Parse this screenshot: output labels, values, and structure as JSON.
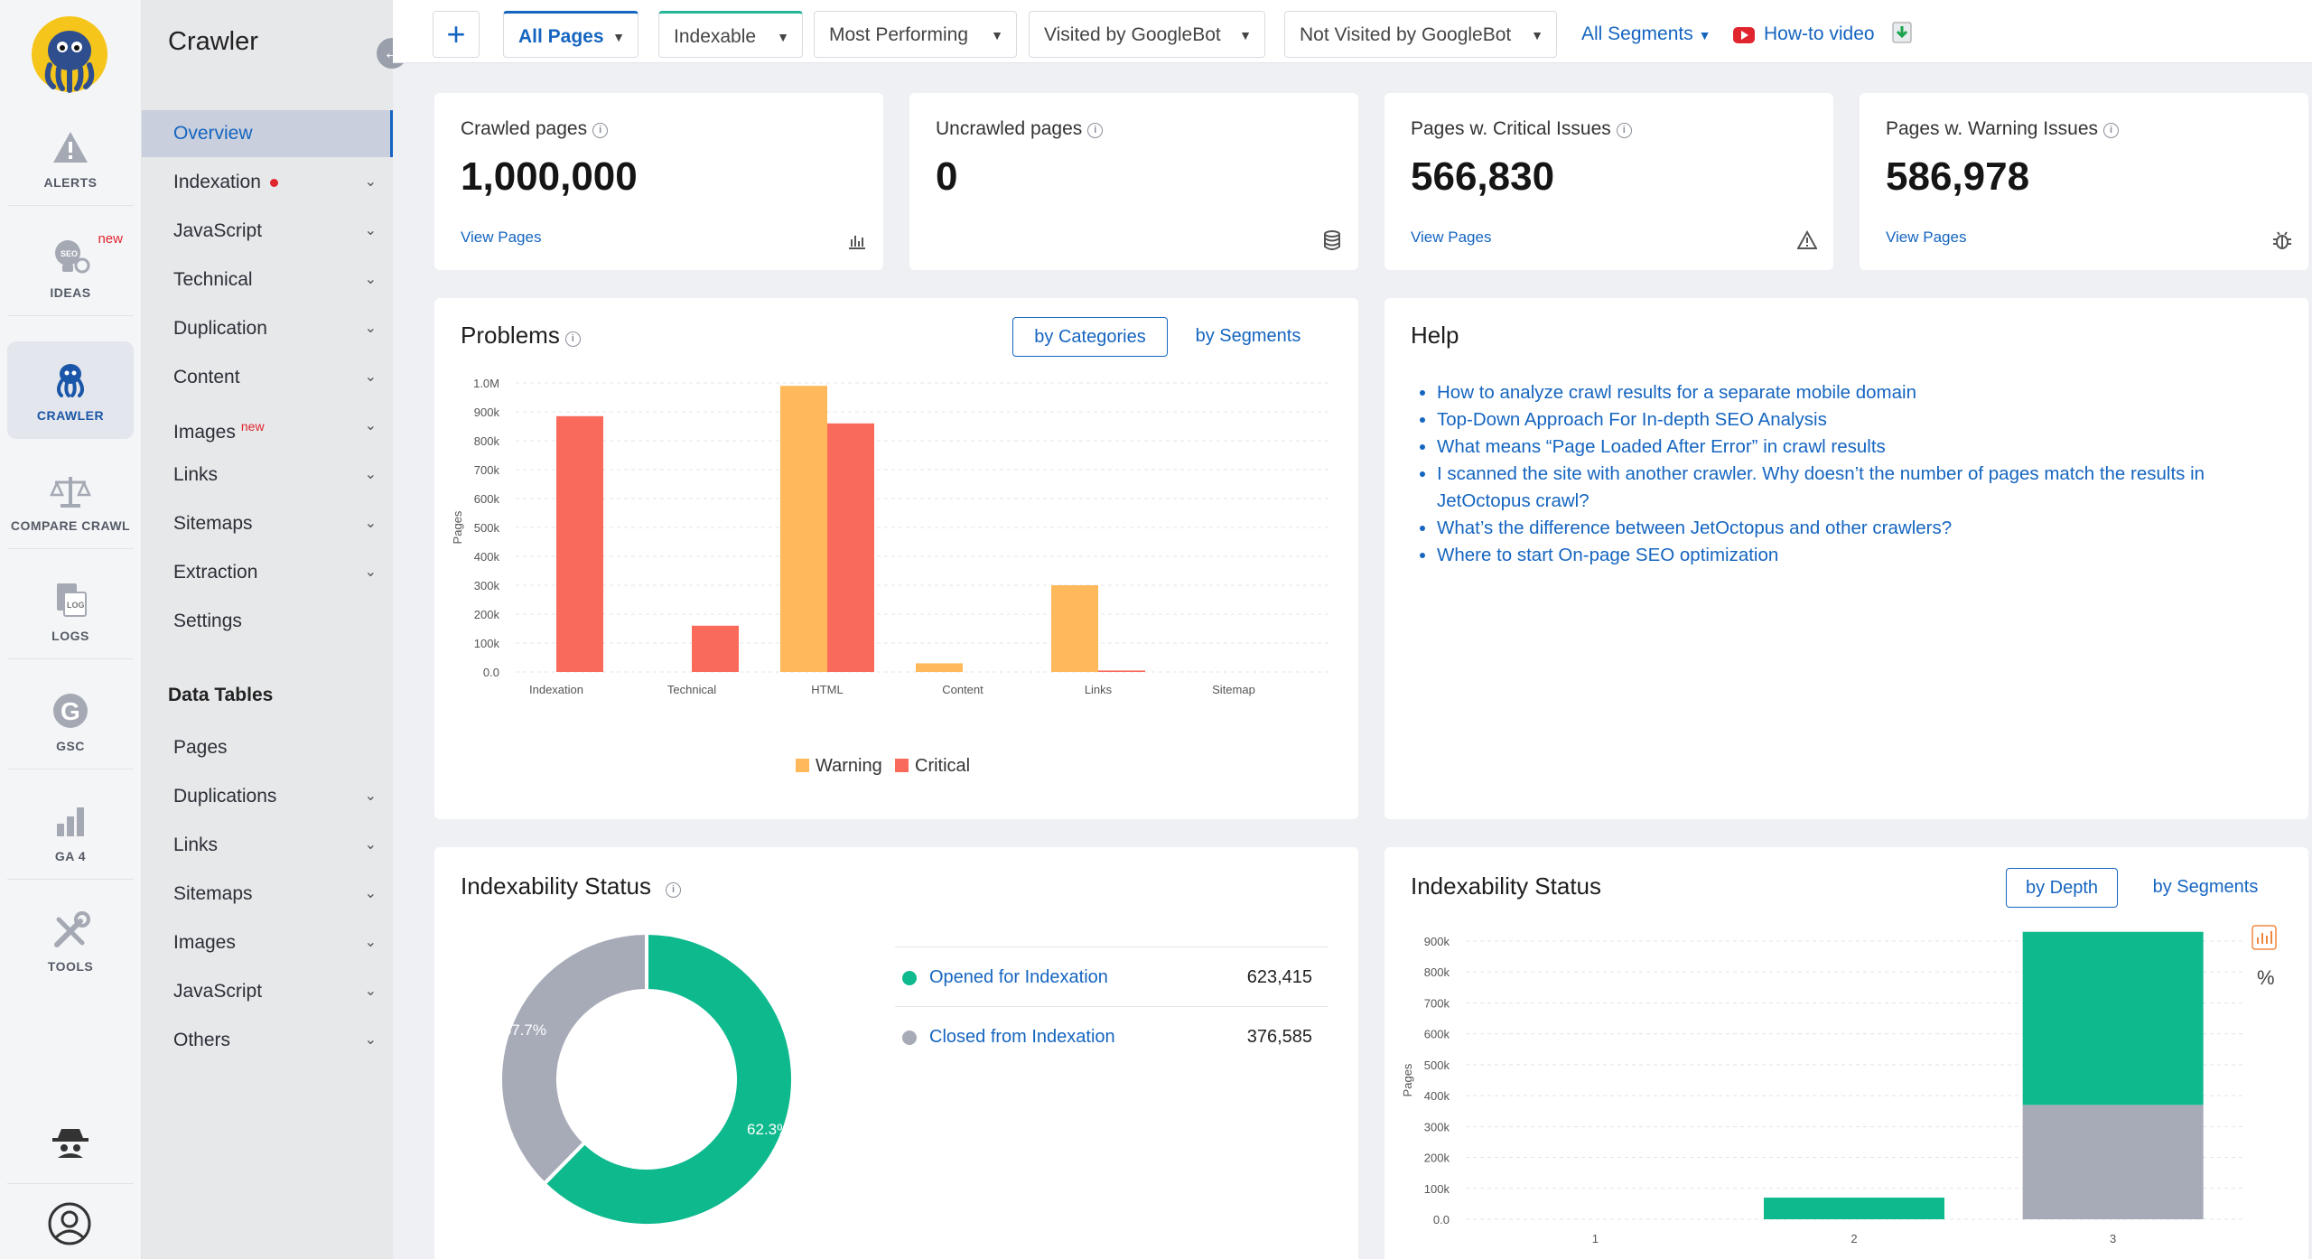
{
  "rail": {
    "items": [
      {
        "label": "ALERTS",
        "icon": "alert-triangle-icon"
      },
      {
        "label": "IDEAS",
        "icon": "seo-lightbulb-icon",
        "badge": "new"
      },
      {
        "label": "CRAWLER",
        "icon": "octopus-icon"
      },
      {
        "label": "COMPARE CRAWL",
        "icon": "scales-icon"
      },
      {
        "label": "LOGS",
        "icon": "log-file-icon"
      },
      {
        "label": "GSC",
        "icon": "google-g-icon"
      },
      {
        "label": "GA 4",
        "icon": "bar-chart-icon"
      },
      {
        "label": "TOOLS",
        "icon": "tools-icon"
      }
    ]
  },
  "sidebar": {
    "title": "Crawler",
    "items": [
      {
        "label": "Overview"
      },
      {
        "label": "Indexation"
      },
      {
        "label": "JavaScript"
      },
      {
        "label": "Technical"
      },
      {
        "label": "Duplication"
      },
      {
        "label": "Content"
      },
      {
        "label": "Images",
        "badge": "new"
      },
      {
        "label": "Links"
      },
      {
        "label": "Sitemaps"
      },
      {
        "label": "Extraction"
      },
      {
        "label": "Settings"
      }
    ],
    "data_tables_title": "Data Tables",
    "data_tables": [
      {
        "label": "Pages"
      },
      {
        "label": "Duplications"
      },
      {
        "label": "Links"
      },
      {
        "label": "Sitemaps"
      },
      {
        "label": "Images"
      },
      {
        "label": "JavaScript"
      },
      {
        "label": "Others"
      }
    ]
  },
  "topbar": {
    "plus": "+",
    "tabs": [
      {
        "label": "All Pages"
      },
      {
        "label": "Indexable"
      },
      {
        "label": "Most Performing"
      },
      {
        "label": "Visited by GoogleBot"
      },
      {
        "label": "Not Visited by GoogleBot"
      }
    ],
    "segments_label": "All Segments",
    "howto_label": "How-to video"
  },
  "kpis": [
    {
      "label": "Crawled pages",
      "value": "1,000,000",
      "link": "View Pages",
      "icon": "bar-chart-icon"
    },
    {
      "label": "Uncrawled pages",
      "value": "0",
      "link": "",
      "icon": "database-icon"
    },
    {
      "label": "Pages w. Critical Issues",
      "value": "566,830",
      "link": "View Pages",
      "icon": "warning-triangle-icon"
    },
    {
      "label": "Pages w. Warning Issues",
      "value": "586,978",
      "link": "View Pages",
      "icon": "bug-icon"
    }
  ],
  "problems": {
    "title": "Problems",
    "by_categories": "by Categories",
    "by_segments": "by Segments"
  },
  "help": {
    "title": "Help",
    "links": [
      "How to analyze crawl results for a separate mobile domain",
      "Top-Down Approach For In-depth SEO Analysis",
      "What means “Page Loaded After Error” in crawl results",
      "I scanned the site with another crawler. Why doesn’t the number of pages match the results in JetOctopus crawl?",
      "What’s the difference between JetOctopus and other crawlers?",
      "Where to start On-page SEO optimization"
    ]
  },
  "indexability": {
    "title": "Indexability Status",
    "opened_label": "Opened for Indexation",
    "opened_value": "623,415",
    "closed_label": "Closed from Indexation",
    "closed_value": "376,585"
  },
  "indexability_depth": {
    "title": "Indexability Status",
    "by_depth": "by Depth",
    "by_segments": "by Segments",
    "percent_label": "%"
  },
  "colors": {
    "warning": "#ffb95a",
    "critical": "#fa6a5a",
    "green": "#0fb98e",
    "gray": "#a7abb8",
    "accent": "#1565c0"
  },
  "chart_data": [
    {
      "type": "bar",
      "categories": [
        "Indexation",
        "Technical",
        "HTML",
        "Content",
        "Links",
        "Sitemap"
      ],
      "series": [
        {
          "name": "Warning",
          "values": [
            0,
            0,
            990000,
            30000,
            300000,
            0
          ]
        },
        {
          "name": "Critical",
          "values": [
            885000,
            160000,
            860000,
            0,
            5000,
            0
          ]
        }
      ],
      "ylabel": "Pages",
      "ylim": [
        0,
        1000000
      ],
      "yticks": [
        "0.0",
        "100k",
        "200k",
        "300k",
        "400k",
        "500k",
        "600k",
        "700k",
        "800k",
        "900k",
        "1.0M"
      ],
      "legend": "bottom",
      "grid": true
    },
    {
      "type": "pie",
      "labels": [
        "Opened for Indexation",
        "Closed from Indexation"
      ],
      "values": [
        623415,
        376585
      ],
      "percent_labels": [
        "62.3%",
        "37.7%"
      ]
    },
    {
      "type": "bar",
      "stacked": true,
      "categories": [
        "1",
        "2",
        "3"
      ],
      "series": [
        {
          "name": "Opened for Indexation",
          "values": [
            0,
            70000,
            560000
          ]
        },
        {
          "name": "Closed from Indexation",
          "values": [
            0,
            0,
            370000
          ]
        }
      ],
      "ylabel": "Pages",
      "ylim": [
        0,
        900000
      ],
      "yticks": [
        "0.0",
        "100k",
        "200k",
        "300k",
        "400k",
        "500k",
        "600k",
        "700k",
        "800k",
        "900k"
      ],
      "grid": true
    }
  ]
}
